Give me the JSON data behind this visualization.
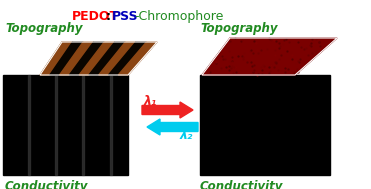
{
  "title_parts": [
    {
      "text": "PEDOT",
      "color": "#ff0000",
      "bold": true
    },
    {
      "text": ":",
      "color": "#000000",
      "bold": true
    },
    {
      "text": "PSS",
      "color": "#0000bb",
      "bold": true
    },
    {
      "text": "-Chromophore",
      "color": "#228B22",
      "bold": false
    }
  ],
  "left_label_top": "Topography",
  "left_label_bottom": "Conductivity",
  "right_label_top": "Topography",
  "right_label_bottom": "Conductivity",
  "label_color": "#228B22",
  "arrow1_color": "#ee2222",
  "arrow2_color": "#00ccee",
  "lambda1_text": "λ₁",
  "lambda2_text": "λ₂",
  "bg_color": "#ffffff",
  "stripe_brown": "#8B4513",
  "stripe_dark": "#0a0500",
  "red_surface": "#7a0000",
  "n_stripes": 9
}
